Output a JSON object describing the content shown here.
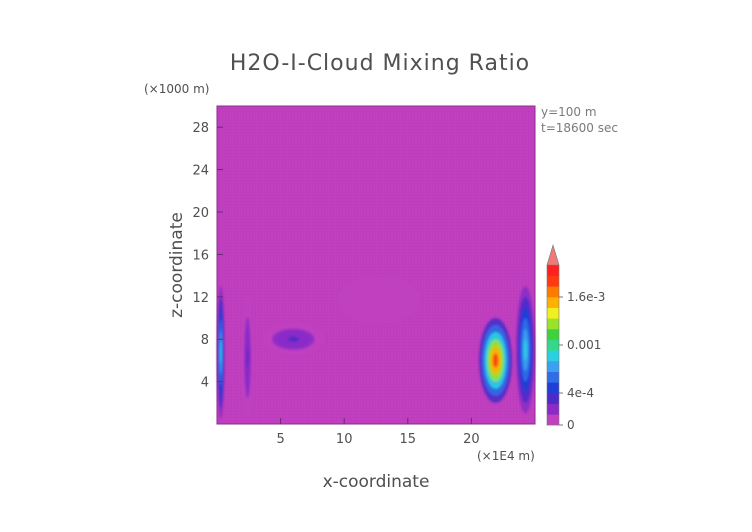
{
  "chart_data": {
    "type": "heatmap",
    "title": "H2O-I-Cloud Mixing Ratio",
    "xlabel": "x-coordinate",
    "ylabel": "z-coordinate",
    "x_units": "(×1E4 m)",
    "y_units": "(×1000 m)",
    "x_ticks": [
      5,
      10,
      15,
      20
    ],
    "y_ticks": [
      4,
      8,
      12,
      16,
      20,
      24,
      28
    ],
    "xlim": [
      0,
      25
    ],
    "ylim": [
      0,
      30
    ],
    "annotations": [
      "y=100 m",
      "t=18600 sec"
    ],
    "background_color": "#c040c0",
    "grid": false,
    "colorbar": {
      "tick_labels": [
        "0",
        "4e-4",
        "0.001",
        "1.6e-3"
      ],
      "tick_values": [
        0,
        0.0004,
        0.001,
        0.0016
      ],
      "range": [
        0,
        0.002
      ],
      "extend": "max",
      "colors": [
        "#c040c0",
        "#8a2bc8",
        "#4b2cc9",
        "#1f3fd6",
        "#2f6ee8",
        "#3aa0f0",
        "#2ad1e0",
        "#33d88a",
        "#3fd23f",
        "#9be22a",
        "#f0f020",
        "#ffb000",
        "#ff7b00",
        "#ff3a10",
        "#ff2020"
      ],
      "arrow_color": "#f07a7a"
    },
    "features": [
      {
        "name": "left-edge column",
        "x_range": [
          0.0,
          0.6
        ],
        "z_range": [
          0.5,
          13.0
        ],
        "max_value": 0.0009
      },
      {
        "name": "left column 2",
        "x_range": [
          2.0,
          2.8
        ],
        "z_range": [
          0.5,
          12.0
        ],
        "max_value": 0.0003
      },
      {
        "name": "mid-level band",
        "x_range": [
          3.5,
          8.5
        ],
        "z_range": [
          6.5,
          9.5
        ],
        "max_value": 0.0003
      },
      {
        "name": "upper faint band",
        "x_range": [
          9.5,
          16.0
        ],
        "z_range": [
          9.5,
          14.0
        ],
        "max_value": 0.0001
      },
      {
        "name": "right active cell",
        "x_range": [
          20.6,
          23.2
        ],
        "z_range": [
          2.0,
          10.0
        ],
        "max_value": 0.0018
      },
      {
        "name": "right edge column",
        "x_range": [
          23.5,
          25.0
        ],
        "z_range": [
          1.0,
          13.0
        ],
        "max_value": 0.0009
      }
    ]
  }
}
